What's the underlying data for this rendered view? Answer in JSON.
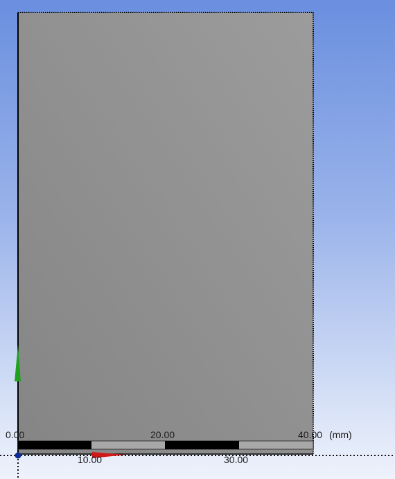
{
  "viewport": {
    "background_top": "#6a8fdf",
    "background_bottom": "#eef2fb",
    "part_color": "#8f8f8f"
  },
  "ruler": {
    "unit_label": "(mm)",
    "ticks_top": [
      "0.00",
      "20.00",
      "40.00"
    ],
    "ticks_bottom": [
      "10.00",
      "30.00"
    ]
  },
  "triad": {
    "y_axis_color": "#1fa01f",
    "x_axis_color": "#d01818",
    "origin_color": "#0a2a9a"
  }
}
